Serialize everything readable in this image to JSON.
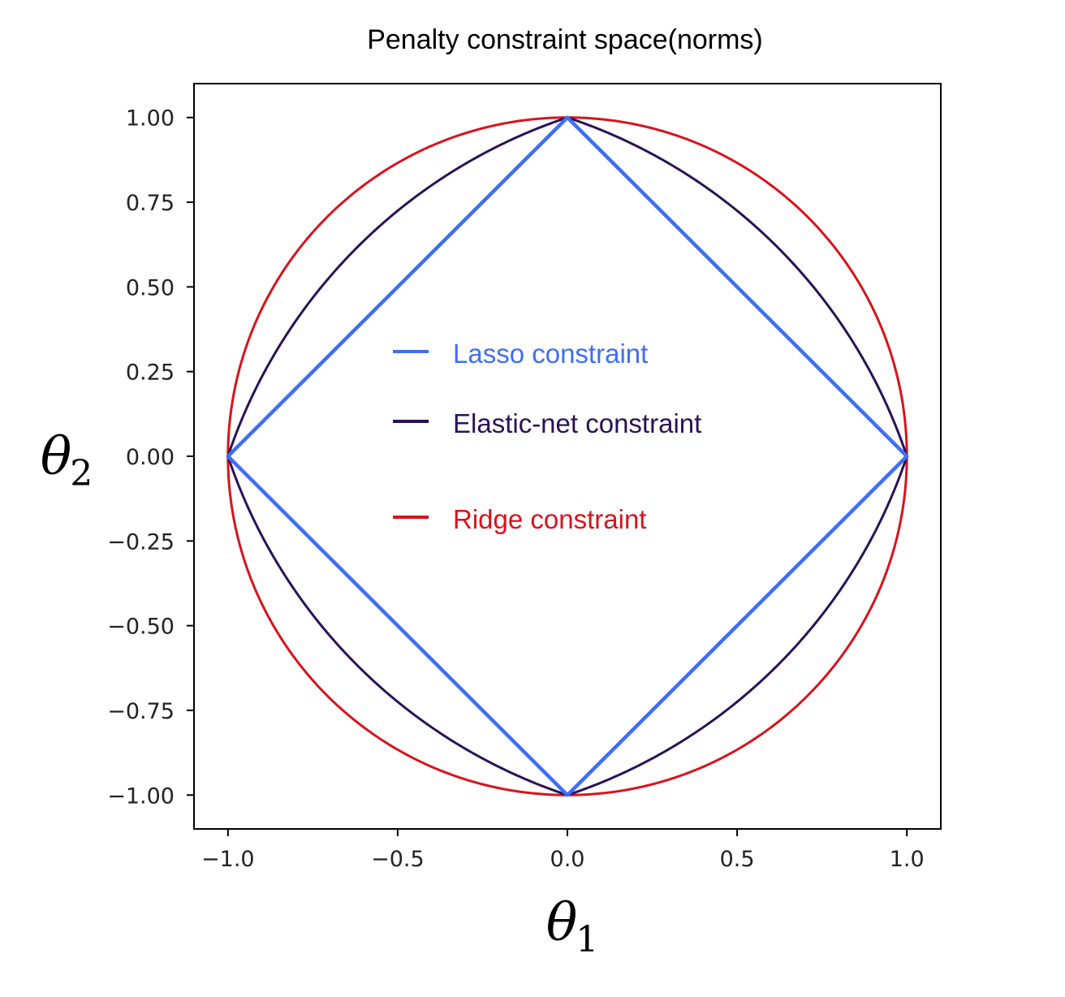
{
  "chart_data": {
    "type": "line",
    "title": "Penalty constraint space(norms)",
    "xlabel": "θ1",
    "ylabel": "θ2",
    "xlabel_base": "θ",
    "xlabel_sub": "1",
    "ylabel_base": "θ",
    "ylabel_sub": "2",
    "xlim": [
      -1.1,
      1.1
    ],
    "ylim": [
      -1.1,
      1.1
    ],
    "xticks": [
      -1.0,
      -0.5,
      0.0,
      0.5,
      1.0
    ],
    "xtick_labels": [
      "−1.0",
      "−0.5",
      "0.0",
      "0.5",
      "1.0"
    ],
    "yticks": [
      1.0,
      0.75,
      0.5,
      0.25,
      0.0,
      -0.25,
      -0.5,
      -0.75,
      -1.0
    ],
    "ytick_labels": [
      "1.00",
      "0.75",
      "0.50",
      "0.25",
      "0.00",
      "−0.25",
      "−0.50",
      "−0.75",
      "−1.00"
    ],
    "grid": false,
    "legend_position": "center",
    "series": [
      {
        "name": "Lasso constraint",
        "shape": "L1 ball |θ1| + |θ2| = 1",
        "color": "#3f6ef5",
        "x": [
          1.0,
          0.0,
          -1.0,
          0.0,
          1.0
        ],
        "y": [
          0.0,
          1.0,
          0.0,
          -1.0,
          0.0
        ]
      },
      {
        "name": "Elastic-net constraint",
        "shape": "0.5|θ| + 0.5θ² = 1",
        "color": "#2b1155",
        "mix": 0.5
      },
      {
        "name": "Ridge constraint",
        "shape": "L2 ball θ1² + θ2² = 1",
        "color": "#d9121b"
      }
    ]
  }
}
